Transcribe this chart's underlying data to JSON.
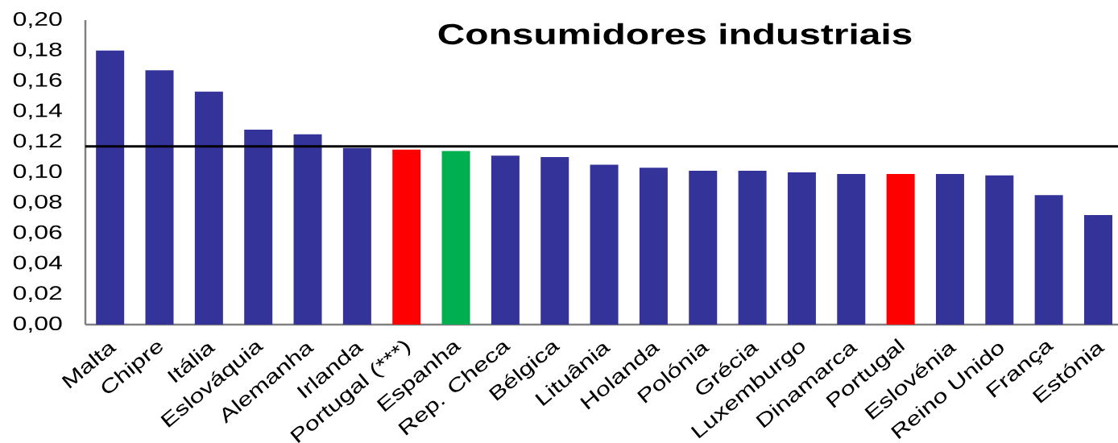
{
  "chart_data": {
    "type": "bar",
    "title": "Consumidores industriais",
    "categories": [
      "Malta",
      "Chipre",
      "Itália",
      "Eslováquia",
      "Alemanha",
      "Irlanda",
      "Portugal (***)",
      "Espanha",
      "Rep. Checa",
      "Bélgica",
      "Lituânia",
      "Holanda",
      "Polónia",
      "Grécia",
      "Luxemburgo",
      "Dinamarca",
      "Portugal",
      "Eslovénia",
      "Reino Unido",
      "França",
      "Estónia"
    ],
    "values": [
      0.18,
      0.167,
      0.153,
      0.128,
      0.125,
      0.116,
      0.115,
      0.114,
      0.111,
      0.11,
      0.105,
      0.103,
      0.101,
      0.101,
      0.1,
      0.099,
      0.099,
      0.099,
      0.098,
      0.085,
      0.072
    ],
    "colors": [
      "#333399",
      "#333399",
      "#333399",
      "#333399",
      "#333399",
      "#333399",
      "#ff0000",
      "#00b050",
      "#333399",
      "#333399",
      "#333399",
      "#333399",
      "#333399",
      "#333399",
      "#333399",
      "#333399",
      "#ff0000",
      "#333399",
      "#333399",
      "#333399",
      "#333399"
    ],
    "ylim": [
      0,
      0.2
    ],
    "yticks": [
      {
        "value": 0,
        "label": "0,00"
      },
      {
        "value": 0.02,
        "label": "0,02"
      },
      {
        "value": 0.04,
        "label": "0,04"
      },
      {
        "value": 0.06,
        "label": "0,06"
      },
      {
        "value": 0.08,
        "label": "0,08"
      },
      {
        "value": 0.1,
        "label": "0,10"
      },
      {
        "value": 0.12,
        "label": "0,12"
      },
      {
        "value": 0.14,
        "label": "0,14"
      },
      {
        "value": 0.16,
        "label": "0,16"
      },
      {
        "value": 0.18,
        "label": "0,18"
      },
      {
        "value": 0.2,
        "label": "0,20"
      }
    ],
    "ref_lines": [
      {
        "axis": "y",
        "value": 0.117,
        "color": "#000000"
      }
    ]
  }
}
